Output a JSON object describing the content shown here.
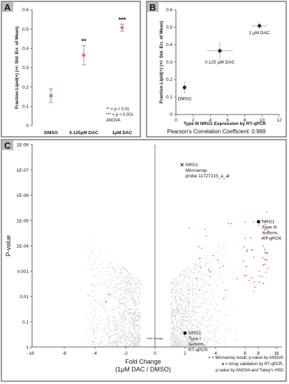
{
  "chart_data": [
    {
      "panel": "A",
      "type": "scatter",
      "ylabel": "Fraction Lipid(+) (+/- Std. Err. of Mean)",
      "ylim": [
        0,
        0.6
      ],
      "yticks": [
        "0",
        "0.1",
        "0.2",
        "0.3",
        "0.4",
        "0.5",
        "0.6"
      ],
      "categories": [
        "DMSO",
        "0.125μM DAC",
        "1μM DAC"
      ],
      "values": [
        0.155,
        0.365,
        0.508
      ],
      "errors": [
        0.035,
        0.05,
        0.018
      ],
      "significance": [
        "",
        "**",
        "***"
      ],
      "color": "#e07a6a",
      "legend_lines": [
        "** = p < 0.01",
        "*** = p < 0.001",
        "ANOVA"
      ]
    },
    {
      "panel": "B",
      "type": "scatter",
      "xlabel": "Type III NRG1 Expression by RT-qPCR",
      "ylabel": "Fraction Lipid(+) (+/- Std. Err. of Mean)",
      "xlim": [
        0,
        12
      ],
      "ylim": [
        0,
        0.6
      ],
      "xticks": [
        "0",
        "2",
        "4",
        "6",
        "8",
        "10",
        "12"
      ],
      "yticks": [
        "0",
        "0.1",
        "0.2",
        "0.3",
        "0.4",
        "0.5",
        "0.6"
      ],
      "points": [
        {
          "label": "DMSO",
          "x": 1.0,
          "y": 0.155,
          "xerr": 0.2,
          "yerr": 0.035
        },
        {
          "label": "0.125 μM DAC",
          "x": 5.1,
          "y": 0.365,
          "xerr": 1.5,
          "yerr": 0.05
        },
        {
          "label": "1 μM DAC",
          "x": 9.7,
          "y": 0.508,
          "xerr": 0.9,
          "yerr": 0.018
        }
      ],
      "color": "#1a2a55",
      "caption": "Pearson's Correlation Coefficient: 0.989"
    },
    {
      "panel": "C",
      "type": "scatter",
      "xlabel": "Fold Change\n(1μM DAC / DMSO)",
      "ylabel": "P-value",
      "xlim": [
        -17,
        17
      ],
      "xticks": [
        "-16",
        "-8",
        "-4",
        "-2",
        "0",
        "2",
        "4",
        "6",
        "8",
        "16"
      ],
      "yticks": [
        "1E-08",
        "1E-07",
        "1E-06",
        "1E-05",
        "1E-04",
        "0.001",
        "0.01",
        "0.1",
        "1"
      ],
      "axis_marker": "Fold Change",
      "highlights": [
        {
          "marker": "×",
          "x": 1.8,
          "log10p": -7.2,
          "label": [
            "NRG1",
            "Microarray",
            "probe 11727215_a_at"
          ]
        },
        {
          "marker": "●",
          "x": 8.1,
          "log10p": -4.95,
          "label": [
            "NRG1",
            "Type III",
            "Isoform,",
            "RT-qPCR"
          ]
        },
        {
          "marker": "●",
          "x": 2.0,
          "log10p": -0.55,
          "label": [
            "NRG1",
            "Type I",
            "Isoform,",
            "RT-qPCR"
          ]
        }
      ],
      "legend": [
        "× = Microarray result, p-value by ANOVA",
        "● = Array validation by RT-qPCR,",
        "p-value by ANOVA and Tukey's HSD"
      ]
    }
  ],
  "panels": {
    "a": "A",
    "b": "B",
    "c": "C"
  }
}
